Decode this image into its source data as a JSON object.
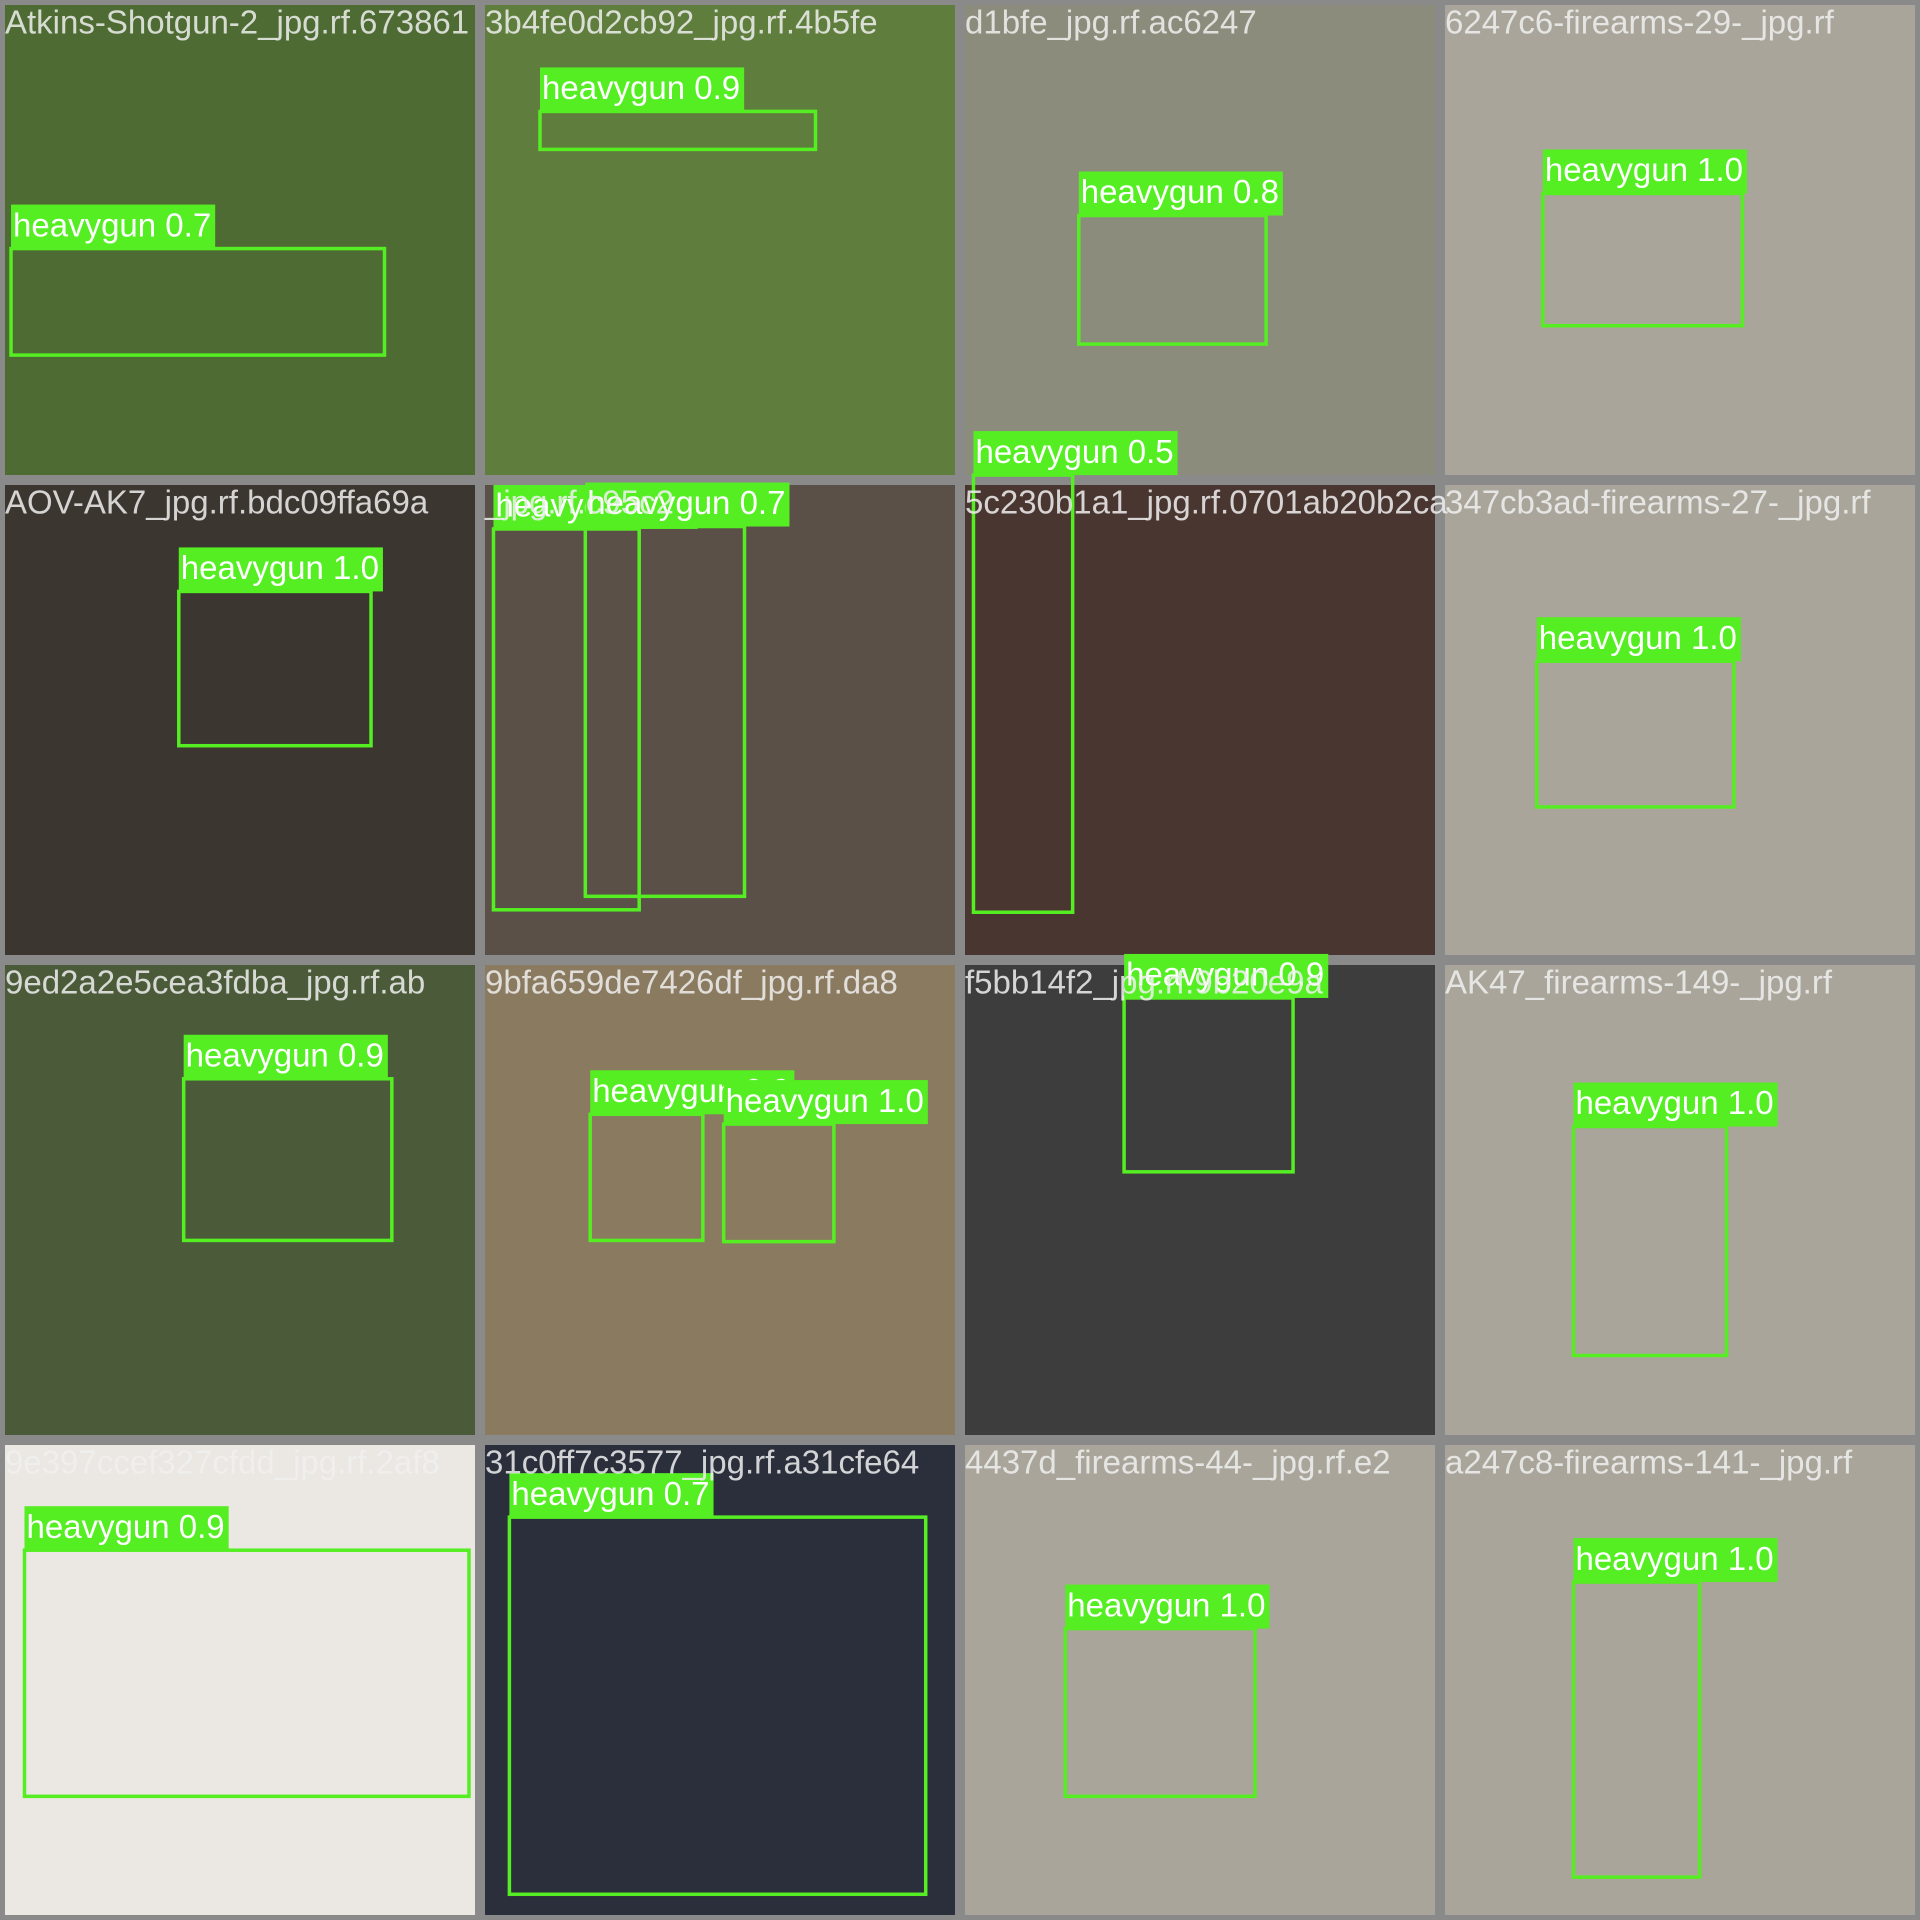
{
  "tiles": [
    {
      "filename": "Atkins-Shotgun-2_jpg.rf.673861",
      "detections": [
        {
          "label": "heavygun 0.7"
        }
      ]
    },
    {
      "filename": "3b4fe0d2cb92_jpg.rf.4b5fe",
      "detections": [
        {
          "label": "heavygun 0.9"
        }
      ]
    },
    {
      "filename": "d1bfe_jpg.rf.ac6247",
      "detections": [
        {
          "label": "heavygun 0.8"
        }
      ]
    },
    {
      "filename": "6247c6-firearms-29-_jpg.rf",
      "detections": [
        {
          "label": "heavygun 1.0"
        }
      ]
    },
    {
      "filename": "AOV-AK7_jpg.rf.bdc09ffa69a",
      "detections": [
        {
          "label": "heavygun 1.0"
        }
      ]
    },
    {
      "filename": "_jpg.rf.c95c2",
      "detections": [
        {
          "label": "heavygun 0.7"
        },
        {
          "label": "heavygun 0.7"
        }
      ]
    },
    {
      "filename": "5c230b1a1_jpg.rf.0701ab20b2ca",
      "detections": [
        {
          "label": "heavygun 0.5"
        }
      ]
    },
    {
      "filename": "347cb3ad-firearms-27-_jpg.rf",
      "detections": [
        {
          "label": "heavygun 1.0"
        }
      ]
    },
    {
      "filename": "9ed2a2e5cea3fdba_jpg.rf.ab",
      "detections": [
        {
          "label": "heavygun 0.9"
        }
      ]
    },
    {
      "filename": "9bfa659de7426df_jpg.rf.da8",
      "detections": [
        {
          "label": "heavygun 0.9"
        },
        {
          "label": "heavygun 1.0"
        }
      ]
    },
    {
      "filename": "f5bb14f2_jpg.rf.9b20e9a",
      "detections": [
        {
          "label": "heavygun 0.9"
        }
      ]
    },
    {
      "filename": "AK47_firearms-149-_jpg.rf",
      "detections": [
        {
          "label": "heavygun 1.0"
        }
      ]
    },
    {
      "filename": "9e397ccef327cfdd_jpg.rf.2af8",
      "detections": [
        {
          "label": "heavygun 0.9"
        }
      ]
    },
    {
      "filename": "31c0ff7c3577_jpg.rf.a31cfe64",
      "detections": [
        {
          "label": "heavygun 0.7"
        }
      ]
    },
    {
      "filename": "4437d_firearms-44-_jpg.rf.e2",
      "detections": [
        {
          "label": "heavygun 1.0"
        }
      ]
    },
    {
      "filename": "a247c8-firearms-141-_jpg.rf",
      "detections": [
        {
          "label": "heavygun 1.0"
        }
      ]
    }
  ]
}
